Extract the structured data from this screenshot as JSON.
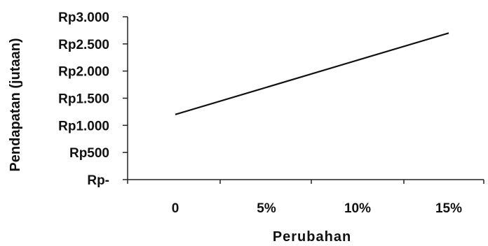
{
  "chart_data": {
    "type": "line",
    "title": "",
    "xlabel": "Perubahan",
    "ylabel": "Pendapatan (jutaan)",
    "categories": [
      "0",
      "5%",
      "10%",
      "15%"
    ],
    "y_tick_labels": [
      "Rp-",
      "Rp500",
      "Rp1.000",
      "Rp1.500",
      "Rp2.000",
      "Rp2.500",
      "Rp3.000"
    ],
    "y_tick_values": [
      0,
      500,
      1000,
      1500,
      2000,
      2500,
      3000
    ],
    "ylim": [
      0,
      3000
    ],
    "grid": false,
    "legend": "none",
    "series": [
      {
        "values": [
          1200,
          1700,
          2200,
          2700
        ],
        "color": "#111111"
      }
    ]
  }
}
